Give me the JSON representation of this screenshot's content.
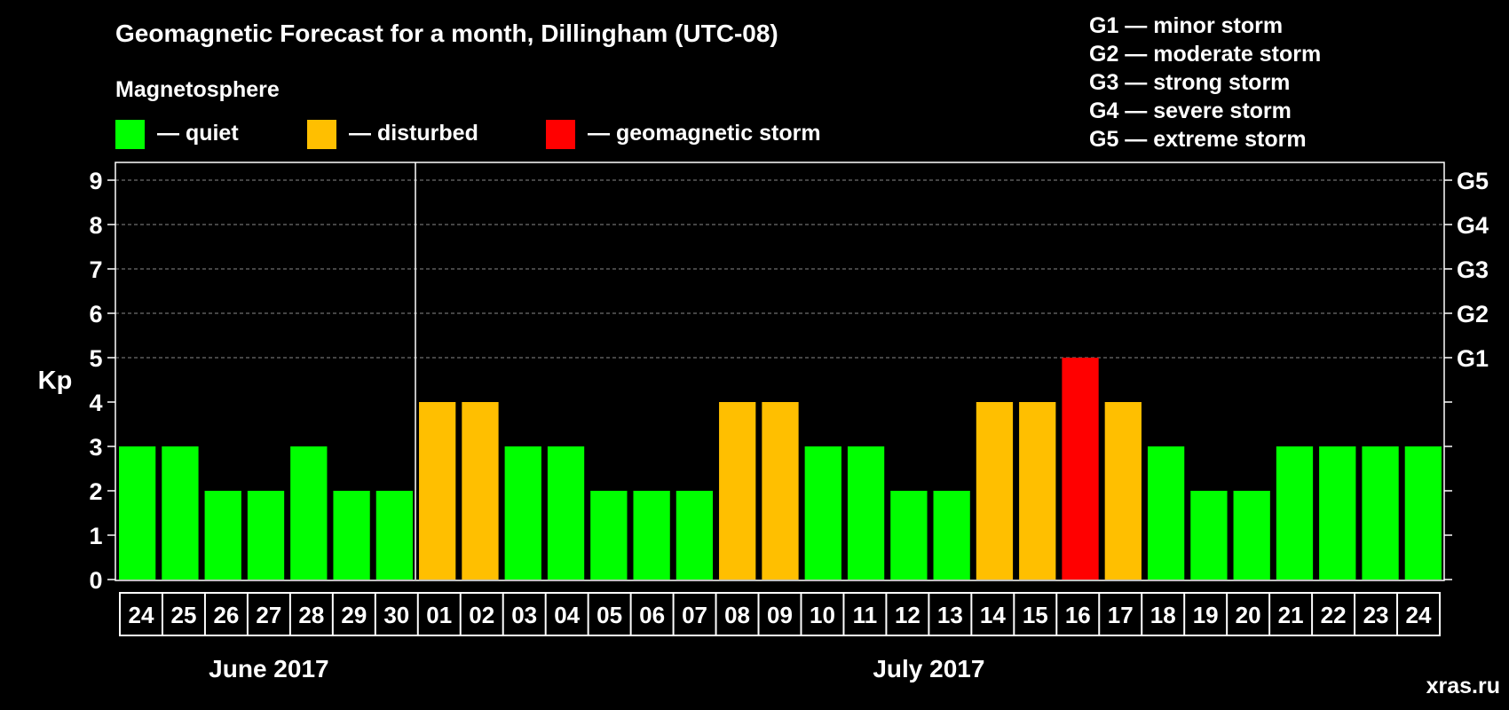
{
  "chart_data": {
    "type": "bar",
    "title": "Geomagnetic Forecast for a month, Dillingham (UTC-08)",
    "ylabel": "Kp",
    "ylim": [
      0,
      9
    ],
    "yticks": [
      "0",
      "1",
      "2",
      "3",
      "4",
      "5",
      "6",
      "7",
      "8",
      "9"
    ],
    "grid": true,
    "categories": [
      "24",
      "25",
      "26",
      "27",
      "28",
      "29",
      "30",
      "01",
      "02",
      "03",
      "04",
      "05",
      "06",
      "07",
      "08",
      "09",
      "10",
      "11",
      "12",
      "13",
      "14",
      "15",
      "16",
      "17",
      "18",
      "19",
      "20",
      "21",
      "22",
      "23",
      "24"
    ],
    "values": [
      3,
      3,
      2,
      2,
      3,
      2,
      2,
      4,
      4,
      3,
      3,
      2,
      2,
      2,
      4,
      4,
      3,
      3,
      2,
      2,
      4,
      4,
      5,
      4,
      3,
      2,
      2,
      3,
      3,
      3,
      3
    ],
    "levels": [
      "quiet",
      "quiet",
      "quiet",
      "quiet",
      "quiet",
      "quiet",
      "quiet",
      "disturbed",
      "disturbed",
      "quiet",
      "quiet",
      "quiet",
      "quiet",
      "quiet",
      "disturbed",
      "disturbed",
      "quiet",
      "quiet",
      "quiet",
      "quiet",
      "disturbed",
      "disturbed",
      "storm",
      "disturbed",
      "quiet",
      "quiet",
      "quiet",
      "quiet",
      "quiet",
      "quiet",
      "quiet"
    ],
    "months": [
      {
        "label": "June 2017",
        "start": 0,
        "end": 6
      },
      {
        "label": "July 2017",
        "start": 7,
        "end": 30
      }
    ],
    "month_divider_after": 6,
    "right_axis": [
      {
        "kp": 5,
        "label": "G1"
      },
      {
        "kp": 6,
        "label": "G2"
      },
      {
        "kp": 7,
        "label": "G3"
      },
      {
        "kp": 8,
        "label": "G4"
      },
      {
        "kp": 9,
        "label": "G5"
      }
    ],
    "legend_title": "Magnetosphere",
    "legend": [
      {
        "key": "quiet",
        "label": "— quiet",
        "color": "#00ff00"
      },
      {
        "key": "disturbed",
        "label": "— disturbed",
        "color": "#ffbf00"
      },
      {
        "key": "storm",
        "label": "— geomagnetic storm",
        "color": "#ff0000"
      }
    ],
    "g_scale": [
      "G1 — minor storm",
      "G2 — moderate storm",
      "G3 — strong storm",
      "G4 — severe storm",
      "G5 — extreme storm"
    ],
    "watermark": "xras.ru"
  },
  "colors": {
    "quiet": "#00ff00",
    "disturbed": "#ffbf00",
    "storm": "#ff0000",
    "background": "#000000",
    "foreground": "#ffffff",
    "grid": "#8a8a8a",
    "watermark": "#666666"
  }
}
